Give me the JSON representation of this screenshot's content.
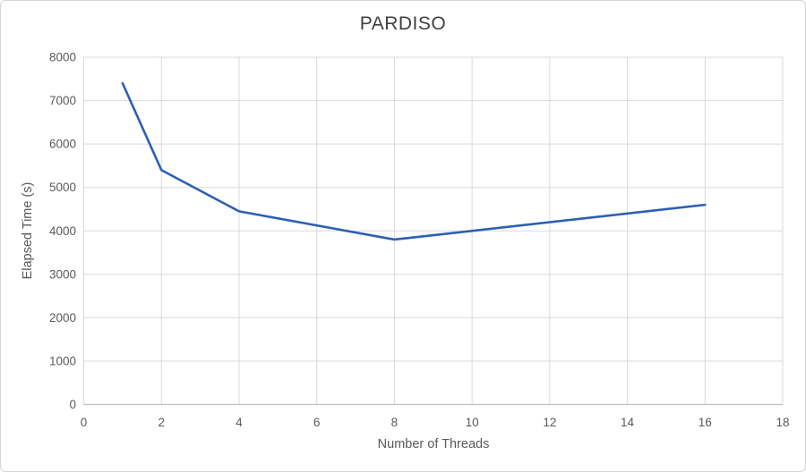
{
  "chart_data": {
    "type": "line",
    "title": "PARDISO",
    "xlabel": "Number of Threads",
    "ylabel": "Elapsed Time (s)",
    "x": [
      1,
      2,
      4,
      8,
      16
    ],
    "values": [
      7400,
      5400,
      4450,
      3800,
      4600
    ],
    "xlim": [
      0,
      18
    ],
    "ylim": [
      0,
      8000
    ],
    "xticks": [
      0,
      2,
      4,
      6,
      8,
      10,
      12,
      14,
      16,
      18
    ],
    "yticks": [
      0,
      1000,
      2000,
      3000,
      4000,
      5000,
      6000,
      7000,
      8000
    ],
    "grid": true,
    "legend": false,
    "line_color": "#2d5fb3",
    "gridline_color": "#d9d9d9",
    "axis_color": "#bfbfbf",
    "tick_label_color": "#595959",
    "title_color": "#404040"
  }
}
